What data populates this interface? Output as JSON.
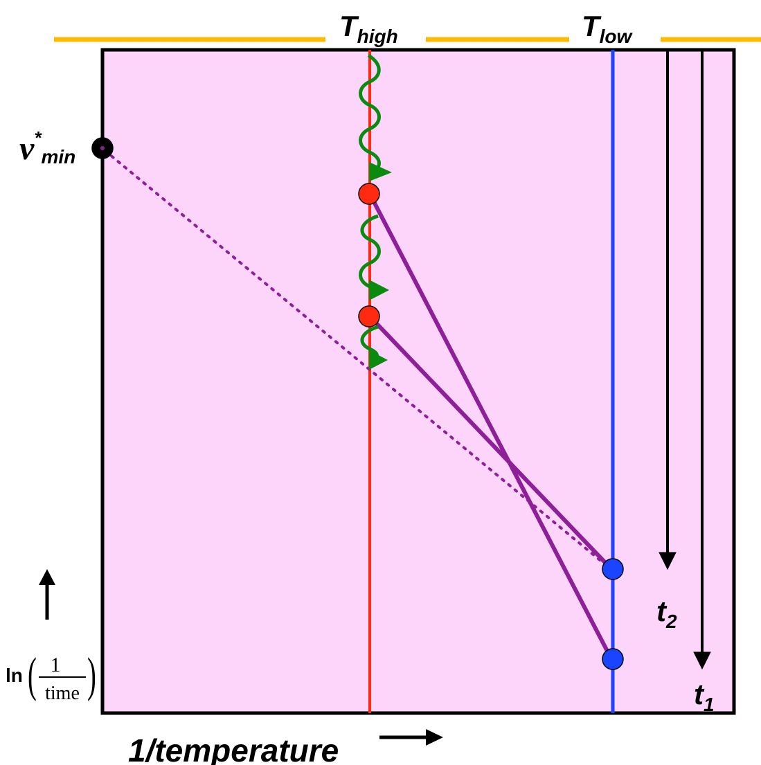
{
  "labels": {
    "t_high_main": "T",
    "t_high_sub": "high",
    "t_low_main": "T",
    "t_low_sub": "low",
    "nu_main": "ν",
    "nu_sup": "*",
    "nu_sub": "min",
    "t2_main": "t",
    "t2_sub": "2",
    "t1_main": "t",
    "t1_sub": "1",
    "x_axis": "1/temperature",
    "y_axis_ln": "ln",
    "y_axis_num": "1",
    "y_axis_den": "time"
  },
  "colors": {
    "background": "#fdd5fb",
    "frame": "#000000",
    "top_bar": "#ffbb00",
    "hot_line": "#ff2a10",
    "cold_line": "#1a44ff",
    "connector": "#8d1f98",
    "wavy_arrow": "#0b8a10",
    "hot_dot": "#ff2a10",
    "cold_dot": "#1a44ff",
    "min_dot": "#000000"
  }
}
